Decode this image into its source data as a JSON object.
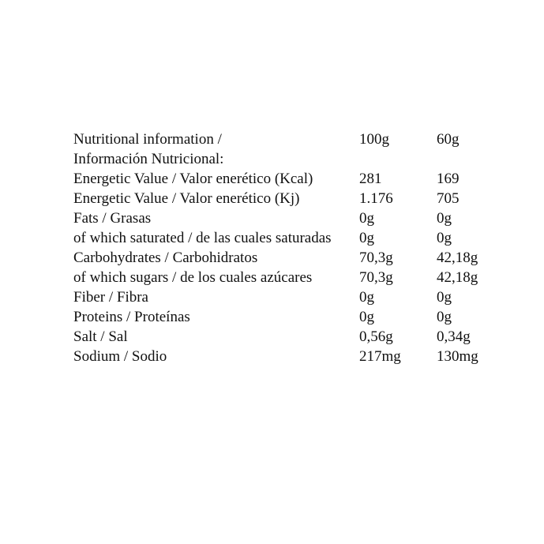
{
  "page": {
    "background_color": "#ffffff",
    "text_color": "#111111"
  },
  "table": {
    "title_line1": "Nutritional information /",
    "title_line2": "Información Nutricional:",
    "columns": {
      "per_100g": "100g",
      "per_60g": "60g"
    },
    "rows": [
      {
        "label": "Energetic Value / Valor enerético (Kcal)",
        "per_100g": "281",
        "per_60g": "169"
      },
      {
        "label": "Energetic Value / Valor enerético (Kj)",
        "per_100g": "1.176",
        "per_60g": "705"
      },
      {
        "label": "Fats / Grasas",
        "per_100g": "0g",
        "per_60g": "0g"
      },
      {
        "label": "of which saturated / de las cuales saturadas",
        "per_100g": "0g",
        "per_60g": "0g"
      },
      {
        "label": "Carbohydrates / Carbohidratos",
        "per_100g": "70,3g",
        "per_60g": "42,18g"
      },
      {
        "label": "of which sugars / de los cuales azúcares",
        "per_100g": "70,3g",
        "per_60g": "42,18g"
      },
      {
        "label": "Fiber / Fibra",
        "per_100g": "0g",
        "per_60g": "0g"
      },
      {
        "label": "Proteins / Proteínas",
        "per_100g": "0g",
        "per_60g": "0g"
      },
      {
        "label": "Salt / Sal",
        "per_100g": "0,56g",
        "per_60g": "0,34g"
      },
      {
        "label": "Sodium / Sodio",
        "per_100g": "217mg",
        "per_60g": "130mg"
      }
    ]
  }
}
